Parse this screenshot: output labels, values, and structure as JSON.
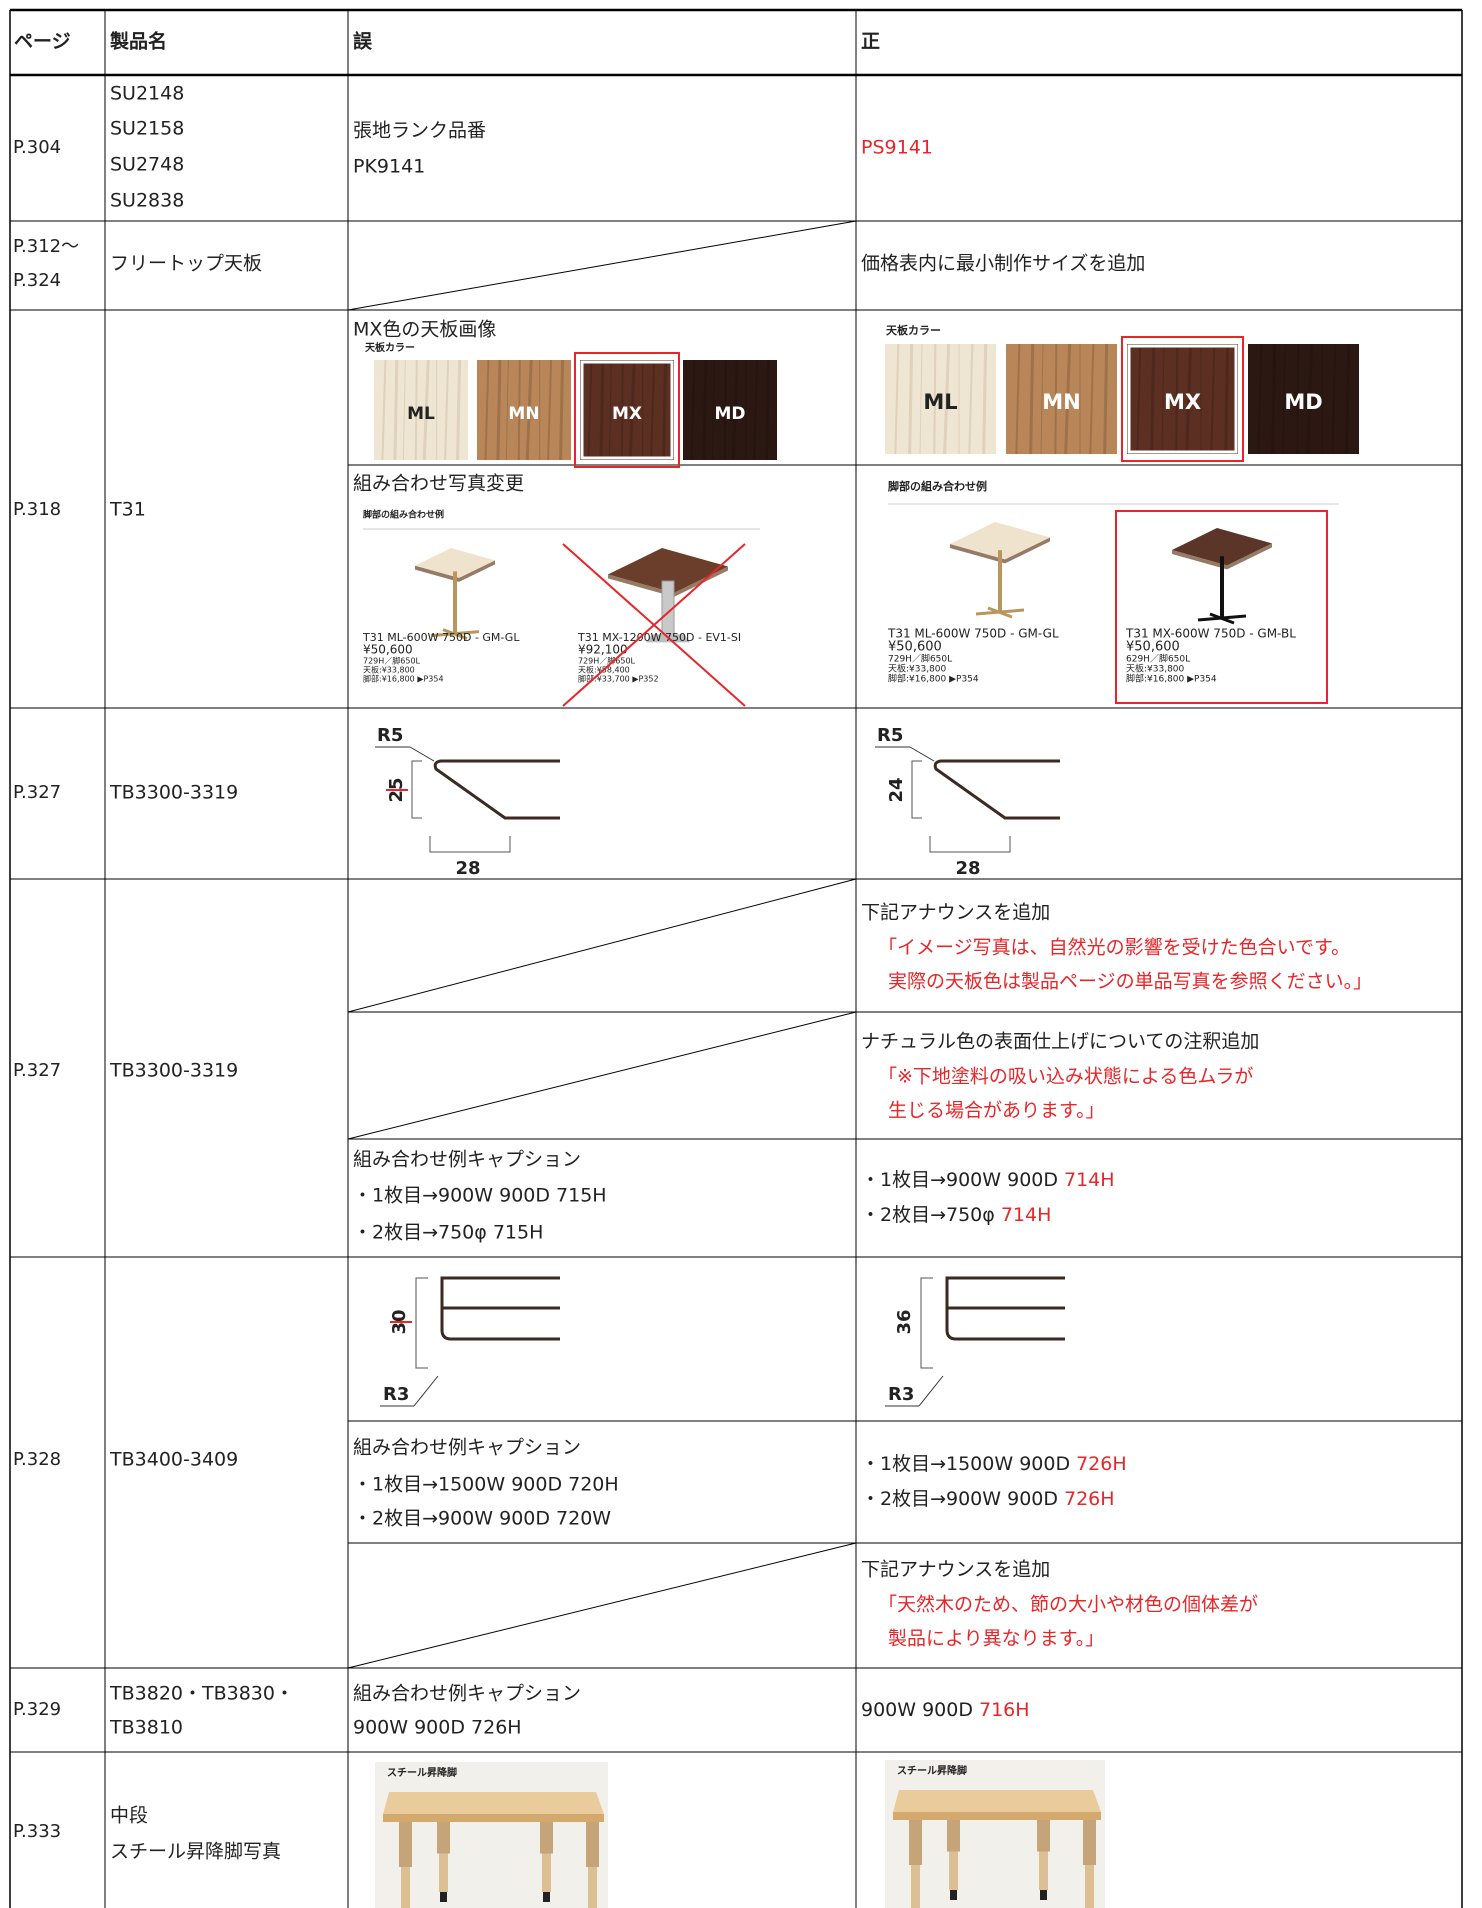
{
  "table": {
    "headers": [
      "ページ",
      "製品名",
      "誤",
      "正"
    ],
    "rows": [
      {
        "page": [
          "P.304"
        ],
        "product": [
          "SU2148",
          "SU2158",
          "SU2748",
          "SU2838"
        ],
        "wrong": [
          "張地ランク品番",
          "PK9141"
        ],
        "correct": [
          "PS9141"
        ]
      },
      {
        "page": [
          "P.312～",
          "P.324"
        ],
        "product": [
          "フリートップ天板"
        ],
        "correct": [
          "価格表内に最小制作サイズを追加"
        ]
      },
      {
        "page": [
          "P.318"
        ],
        "product": [
          "T31"
        ],
        "wrong": {
          "swatch_title": "MX色の天板画像",
          "swatch_heading": "天板カラー",
          "swatches": [
            "ML",
            "MN",
            "MX",
            "MD"
          ],
          "combo_title": "組み合わせ写真変更",
          "combo_heading": "脚部の組み合わせ例",
          "combos": [
            [
              "T31 ML-600W 750D - GM-GL",
              "¥50,600",
              "729H／脚650L",
              "天板:¥33,800",
              "脚部:¥16,800 ▶P354"
            ],
            [
              "T31 MX-1200W 750D - EV1-SI",
              "¥92,100",
              "729H／脚650L",
              "天板:¥58,400",
              "脚部:¥33,700 ▶P352"
            ]
          ]
        },
        "correct": {
          "swatch_heading": "天板カラー",
          "swatches": [
            "ML",
            "MN",
            "MX",
            "MD"
          ],
          "combo_heading": "脚部の組み合わせ例",
          "combos": [
            [
              "T31 ML-600W 750D - GM-GL",
              "¥50,600",
              "729H／脚650L",
              "天板:¥33,800",
              "脚部:¥16,800 ▶P354"
            ],
            [
              "T31 MX-600W 750D - GM-BL",
              "¥50,600",
              "629H／脚650L",
              "天板:¥33,800",
              "脚部:¥16,800 ▶P354"
            ]
          ]
        }
      },
      {
        "page": [
          "P.327"
        ],
        "product": [
          "TB3300-3319"
        ],
        "wrong": {
          "radius": "R5",
          "height": "25",
          "width": "28"
        },
        "correct": {
          "radius": "R5",
          "height": "24",
          "width": "28"
        }
      },
      {
        "page": [
          "P.327"
        ],
        "product": [
          "TB3300-3319"
        ],
        "parts": [
          {
            "correct": {
              "lead": "下記アナウンスを追加",
              "notice": [
                "「イメージ写真は、自然光の影響を受けた色合いです。",
                "実際の天板色は製品ページの単品写真を参照ください。」"
              ]
            }
          },
          {
            "correct": {
              "lead": "ナチュラル色の表面仕上げについての注釈追加",
              "notice": [
                "「※下地塗料の吸い込み状態による色ムラが",
                "生じる場合があります。」"
              ]
            }
          },
          {
            "wrong": [
              "組み合わせ例キャプション",
              "・1枚目→900W 900D 715H",
              "・2枚目→750φ 715H"
            ],
            "correct": [
              [
                "・1枚目→900W 900D",
                "714H"
              ],
              [
                "・2枚目→750φ",
                "714H"
              ]
            ]
          }
        ]
      },
      {
        "page": [
          "P.328"
        ],
        "product": [
          "TB3400-3409"
        ],
        "parts": [
          {
            "wrong": {
              "height": "30",
              "radius": "R3"
            },
            "correct": {
              "height": "36",
              "radius": "R3"
            }
          },
          {
            "wrong": [
              "組み合わせ例キャプション",
              "・1枚目→1500W 900D 720H",
              "・2枚目→900W 900D 720W"
            ],
            "correct": [
              [
                "・1枚目→1500W 900D",
                "726H"
              ],
              [
                "・2枚目→900W 900D",
                "726H"
              ]
            ]
          },
          {
            "correct": {
              "lead": "下記アナウンスを追加",
              "notice": [
                "「天然木のため、節の大小や材色の個体差が",
                "製品により異なります。」"
              ]
            }
          }
        ]
      },
      {
        "page": [
          "P.329"
        ],
        "product": [
          "TB3820・TB3830・",
          "TB3810"
        ],
        "wrong": [
          "組み合わせ例キャプション",
          "900W 900D 726H"
        ],
        "correct": [
          [
            "900W 900D",
            "716H"
          ]
        ]
      },
      {
        "page": [
          "P.333"
        ],
        "product": [
          "中段",
          "スチール昇降脚写真"
        ],
        "wrong": {
          "photo_heading": "スチール昇降脚"
        },
        "correct": {
          "photo_heading": "スチール昇降脚"
        }
      }
    ]
  }
}
